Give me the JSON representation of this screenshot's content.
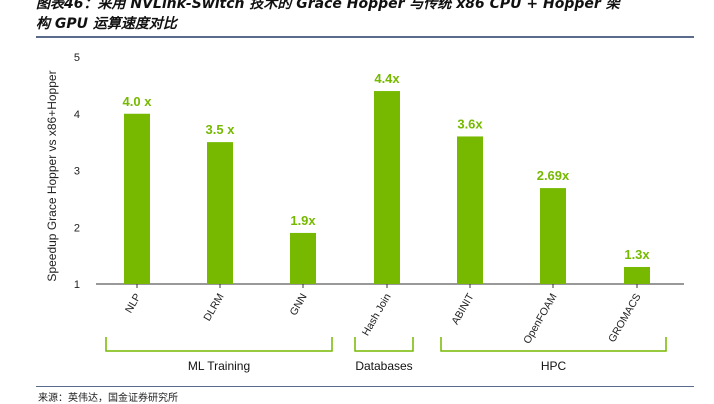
{
  "caption": {
    "line1": "图表46：采用 NVLink-Switch 技术的 Grace Hopper 与传统 x86 CPU + Hopper 架",
    "line2": "构 GPU 运算速度对比"
  },
  "source": "来源：英伟达，国金证券研究所",
  "colors": {
    "bar": "#76b900",
    "bracket": "#76b900",
    "rule": "#5b6b8c"
  },
  "chart_data": {
    "type": "bar",
    "ylabel": "Speedup Grace Hopper vs x86+Hopper",
    "xlabel": "",
    "ylim": [
      1,
      5
    ],
    "yticks": [
      "1",
      "2",
      "3",
      "4",
      "5"
    ],
    "grid": false,
    "categories": [
      "NLP",
      "DLRM",
      "GNN",
      "Hash Join",
      "ABINIT",
      "OpenFOAM",
      "GROMACS"
    ],
    "values": [
      4.0,
      3.5,
      1.9,
      4.4,
      3.6,
      2.69,
      1.3
    ],
    "data_labels": [
      "4.0 x",
      "3.5 x",
      "1.9x",
      "4.4x",
      "3.6x",
      "2.69x",
      "1.3x"
    ],
    "groups": [
      {
        "name": "ML Training",
        "from": 0,
        "to": 2
      },
      {
        "name": "Databases",
        "from": 3,
        "to": 3
      },
      {
        "name": "HPC",
        "from": 4,
        "to": 6
      }
    ]
  }
}
